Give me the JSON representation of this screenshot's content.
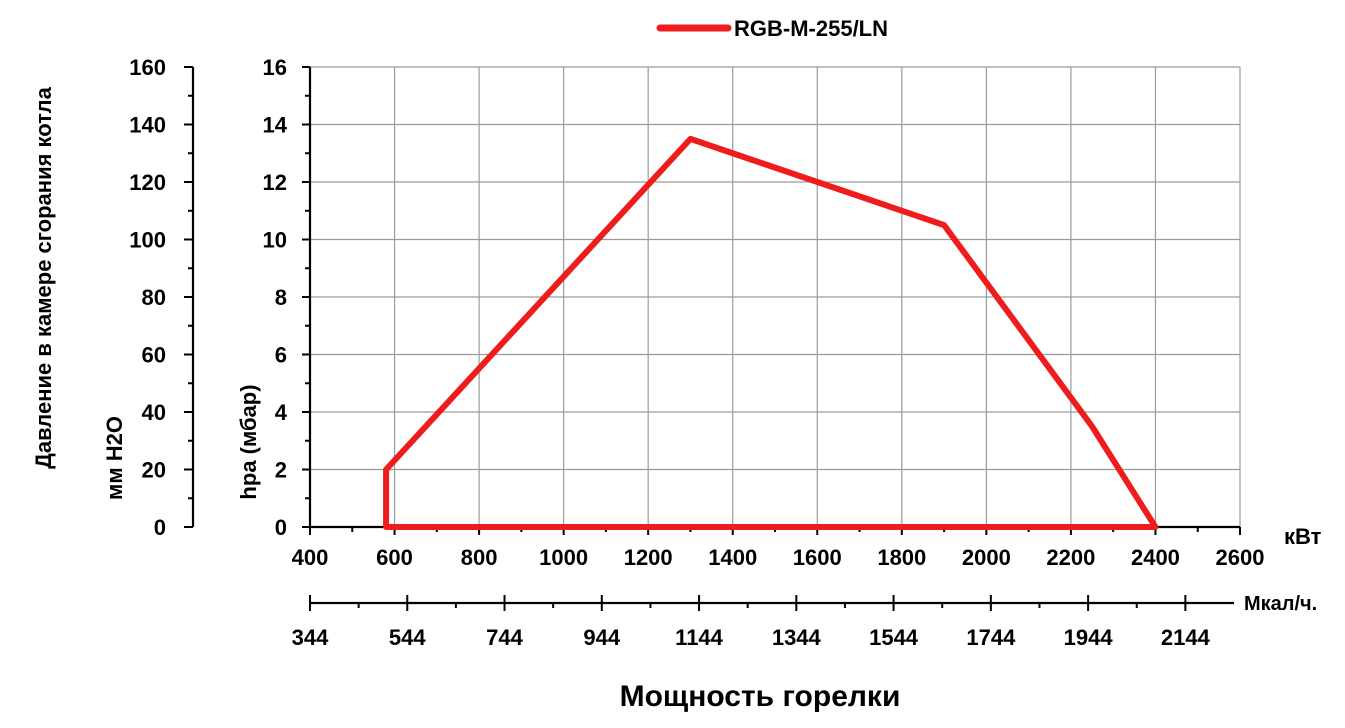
{
  "chart_data": {
    "type": "line",
    "xlabel": "Мощность горелки",
    "x_unit_primary": "кВт",
    "x_unit_secondary": "Мкал/ч.",
    "ylabel_left": "Давление в камере сгорания котла",
    "ylabel_left_unit": "мм Н2О",
    "ylabel_right": "hpa (мбар)",
    "xlim": [
      400,
      2600
    ],
    "ylim": [
      0,
      16
    ],
    "ylim_mm": [
      0,
      160
    ],
    "x_ticks": [
      400,
      600,
      800,
      1000,
      1200,
      1400,
      1600,
      1800,
      2000,
      2200,
      2400,
      2600
    ],
    "y_ticks": [
      0,
      2,
      4,
      6,
      8,
      10,
      12,
      14,
      16
    ],
    "y_ticks_mm": [
      0,
      20,
      40,
      60,
      80,
      100,
      120,
      140,
      160
    ],
    "x2_ticks": [
      "344",
      "544",
      "744",
      "944",
      "1144",
      "1344",
      "1544",
      "1744",
      "1944",
      "2144"
    ],
    "grid": true,
    "legend_position": "top-center",
    "series": [
      {
        "name": "RGB-M-255/LN",
        "color": "#ee1c1c",
        "x": [
          580,
          580,
          1300,
          1900,
          2250,
          2400,
          580
        ],
        "y": [
          0,
          2,
          13.5,
          10.5,
          3.5,
          0,
          0
        ]
      }
    ]
  }
}
